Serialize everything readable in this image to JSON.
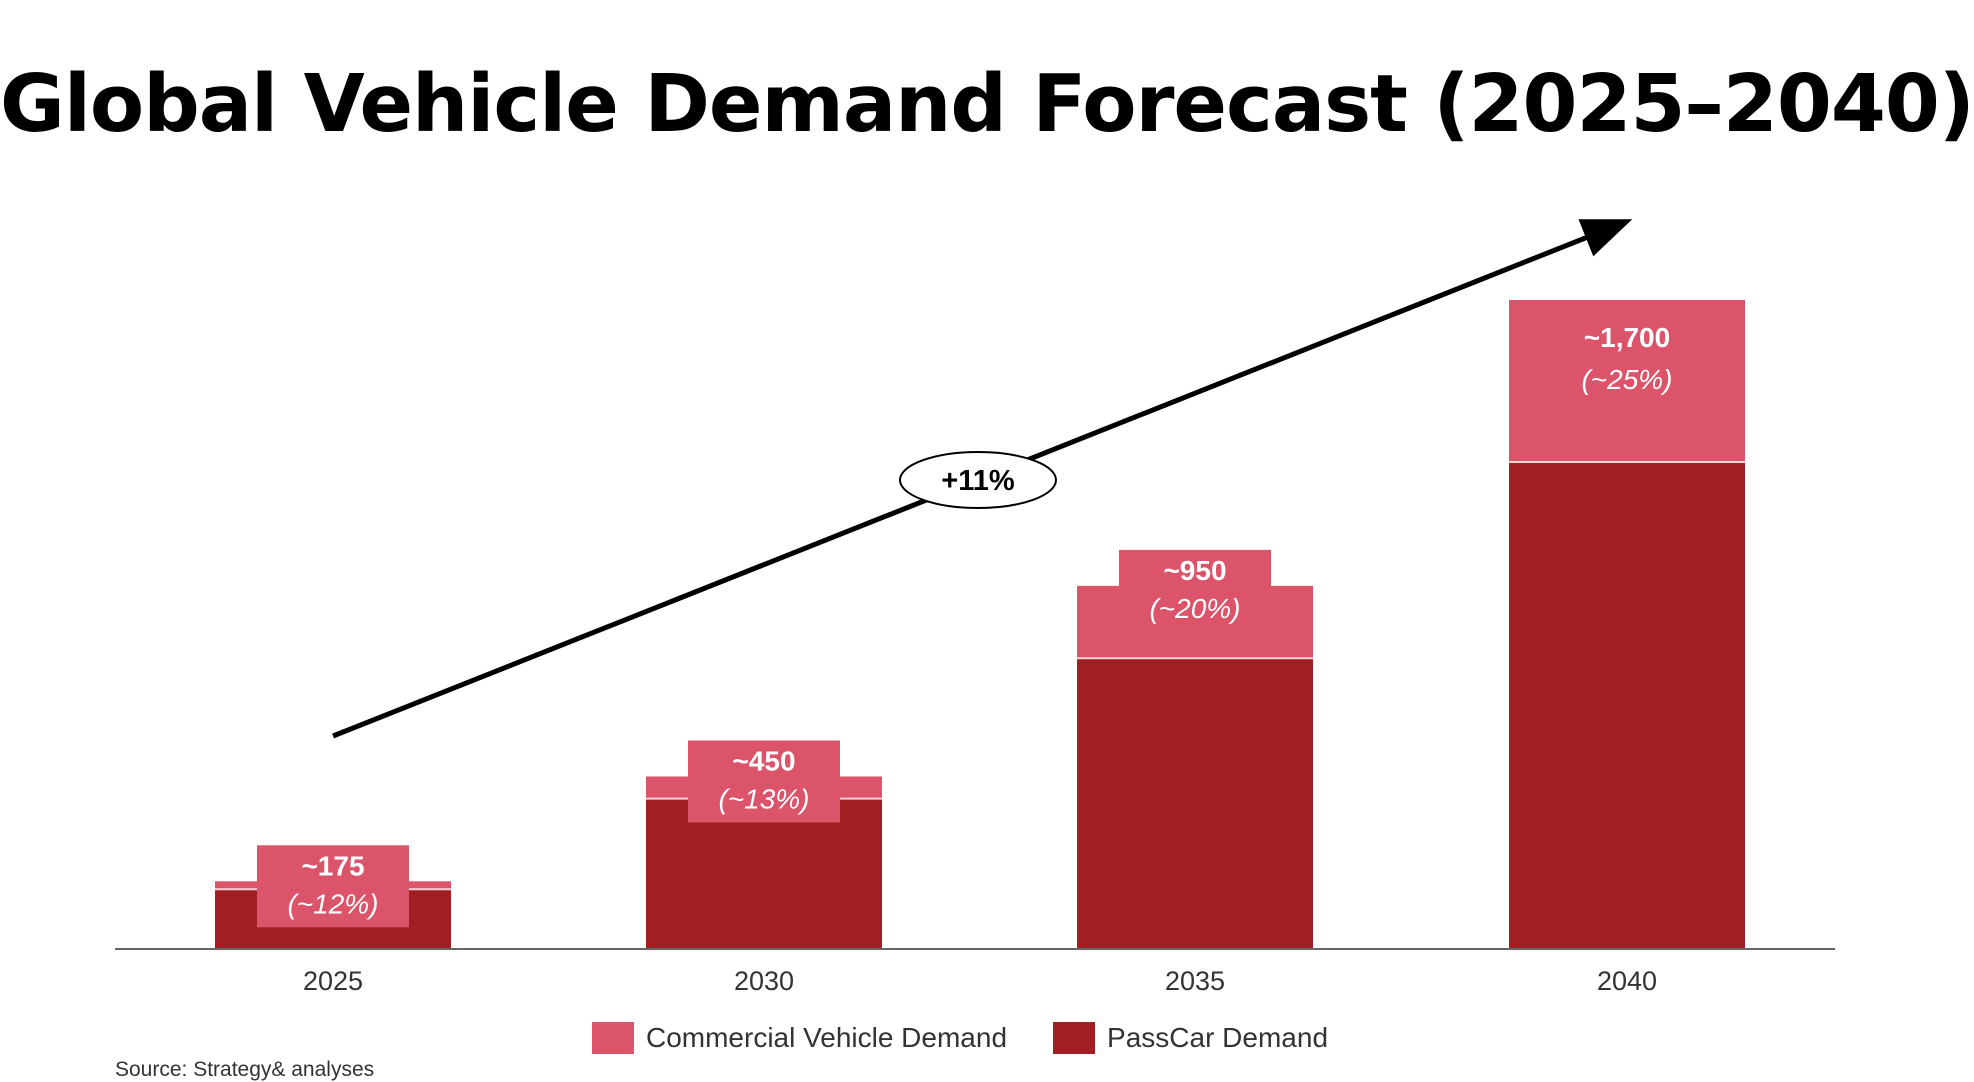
{
  "chart_data": {
    "type": "bar",
    "stacked": true,
    "title": "Global Vehicle Demand Forecast (2025–2040)",
    "categories": [
      "2025",
      "2030",
      "2035",
      "2040"
    ],
    "totals": [
      175,
      450,
      950,
      1700
    ],
    "value_labels": [
      "~175",
      "~450",
      "~950",
      "~1,700"
    ],
    "share_labels": [
      "(~12%)",
      "(~13%)",
      "(~20%)",
      "(~25%)"
    ],
    "series": [
      {
        "name": "PassCar Demand",
        "values": [
          154,
          392,
          760,
          1275
        ],
        "color": "#a11f22"
      },
      {
        "name": "Commercial Vehicle Demand",
        "values": [
          21,
          58,
          190,
          425
        ],
        "color": "#dc546a"
      }
    ],
    "trend_label": "+11%",
    "xlabel": "",
    "ylabel": "",
    "ylim": [
      0,
      1700
    ],
    "grid": false,
    "legend_position": "bottom-center"
  },
  "legend": {
    "items": [
      {
        "label": "Commercial Vehicle Demand",
        "color": "#dc546a"
      },
      {
        "label": "PassCar Demand",
        "color": "#a11f22"
      }
    ]
  },
  "source": "Source: Strategy& analyses"
}
